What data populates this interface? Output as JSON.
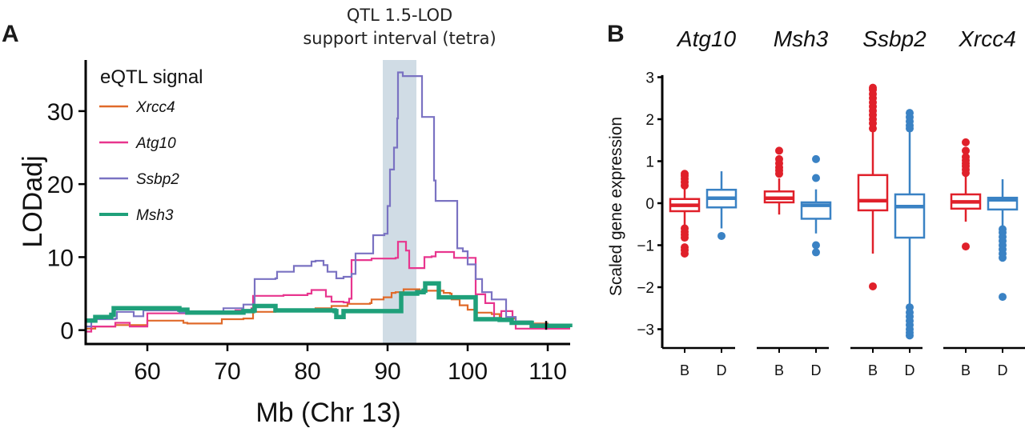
{
  "chart_data": [
    {
      "panel": "A",
      "type": "line",
      "step": true,
      "xlabel": "Mb (Chr 13)",
      "ylabel": "LODadj",
      "xlim": [
        52.3,
        112.8
      ],
      "ylim": [
        -1.9,
        37
      ],
      "xticks": [
        60,
        70,
        80,
        90,
        100,
        110
      ],
      "yticks": [
        0,
        10,
        20,
        30
      ],
      "grid": false,
      "shaded_region": {
        "label_line1": "QTL 1.5-LOD",
        "label_line2": "support interval (tetra)",
        "x_start": 89.4,
        "x_end": 93.6,
        "color": "#d0dce5"
      },
      "legend": {
        "title": "eQTL signal",
        "placement": "top-left"
      },
      "marker": {
        "x": 109.8,
        "y": 0.6
      },
      "series": [
        {
          "name": "Xrcc4",
          "color": "#e06a2a",
          "width": "thin",
          "points": [
            [
              52.3,
              0.2
            ],
            [
              53.5,
              0.5
            ],
            [
              56,
              0.7
            ],
            [
              59.8,
              0.7
            ],
            [
              60,
              1.3
            ],
            [
              64,
              1.3
            ],
            [
              64.5,
              1.0
            ],
            [
              65,
              0.9
            ],
            [
              69,
              0.9
            ],
            [
              69.3,
              1.5
            ],
            [
              72,
              1.6
            ],
            [
              73,
              1.6
            ],
            [
              73.2,
              2.5
            ],
            [
              76,
              2.6
            ],
            [
              78,
              2.8
            ],
            [
              81,
              3.0
            ],
            [
              83,
              3.3
            ],
            [
              85,
              3.6
            ],
            [
              87.8,
              3.7
            ],
            [
              88,
              4.2
            ],
            [
              89.5,
              4.5
            ],
            [
              90.5,
              5.1
            ],
            [
              91,
              5.2
            ],
            [
              92,
              5.6
            ],
            [
              93.8,
              5.6
            ],
            [
              94,
              5.4
            ],
            [
              97,
              5.1
            ],
            [
              97.8,
              5.0
            ],
            [
              98,
              4.2
            ],
            [
              99,
              3.4
            ],
            [
              100,
              2.8
            ],
            [
              101,
              2.4
            ],
            [
              103,
              2.2
            ],
            [
              104,
              1.6
            ],
            [
              106,
              1.2
            ],
            [
              108,
              0.9
            ],
            [
              110,
              0.6
            ],
            [
              112.8,
              0.5
            ]
          ]
        },
        {
          "name": "Atg10",
          "color": "#e8358e",
          "width": "thin",
          "points": [
            [
              52.3,
              -0.2
            ],
            [
              53,
              0.5
            ],
            [
              55.5,
              0.5
            ],
            [
              56,
              1.0
            ],
            [
              57.5,
              1.0
            ],
            [
              57.8,
              0.5
            ],
            [
              59.8,
              0.5
            ],
            [
              60,
              2.3
            ],
            [
              65,
              2.4
            ],
            [
              69,
              2.5
            ],
            [
              71,
              2.7
            ],
            [
              73,
              3.0
            ],
            [
              73.2,
              4.7
            ],
            [
              77,
              4.8
            ],
            [
              80,
              5.0
            ],
            [
              80.5,
              5.5
            ],
            [
              82,
              5.5
            ],
            [
              82.3,
              4.6
            ],
            [
              83,
              3.9
            ],
            [
              84.5,
              3.8
            ],
            [
              85.2,
              4.3
            ],
            [
              85.5,
              9.6
            ],
            [
              88,
              9.8
            ],
            [
              91,
              9.9
            ],
            [
              91.3,
              12.1
            ],
            [
              92,
              12.1
            ],
            [
              92.3,
              10.9
            ],
            [
              92.7,
              8.5
            ],
            [
              94.4,
              8.5
            ],
            [
              94.6,
              10.0
            ],
            [
              95.5,
              10.1
            ],
            [
              96,
              10.7
            ],
            [
              98,
              10.7
            ],
            [
              98.3,
              9.9
            ],
            [
              100.7,
              9.9
            ],
            [
              101,
              4.9
            ],
            [
              102,
              4.9
            ],
            [
              102.2,
              3.7
            ],
            [
              103,
              3.7
            ],
            [
              103.3,
              1.6
            ],
            [
              104,
              1.6
            ],
            [
              104.2,
              2.6
            ],
            [
              105.4,
              2.6
            ],
            [
              105.6,
              1.1
            ],
            [
              106,
              0.2
            ],
            [
              110,
              0.2
            ],
            [
              112.8,
              0.2
            ]
          ]
        },
        {
          "name": "Ssbp2",
          "color": "#7a72c2",
          "width": "thin",
          "points": [
            [
              52.3,
              0.5
            ],
            [
              53,
              1.5
            ],
            [
              56,
              1.6
            ],
            [
              56.2,
              2.5
            ],
            [
              58,
              2.5
            ],
            [
              58.3,
              1.9
            ],
            [
              59.3,
              1.9
            ],
            [
              59.5,
              2.7
            ],
            [
              63,
              2.7
            ],
            [
              64,
              2.4
            ],
            [
              68,
              2.3
            ],
            [
              69.5,
              3.0
            ],
            [
              72,
              3.5
            ],
            [
              73.2,
              3.6
            ],
            [
              73.4,
              7.0
            ],
            [
              76,
              7.1
            ],
            [
              76.2,
              8.0
            ],
            [
              78,
              8.0
            ],
            [
              78.3,
              8.8
            ],
            [
              80.5,
              9.4
            ],
            [
              81,
              9.5
            ],
            [
              82,
              8.9
            ],
            [
              82.5,
              8.0
            ],
            [
              83.4,
              8.0
            ],
            [
              83.6,
              7.1
            ],
            [
              84.5,
              7.3
            ],
            [
              85.5,
              7.7
            ],
            [
              86,
              10.5
            ],
            [
              88,
              10.5
            ],
            [
              88.2,
              13.0
            ],
            [
              89.6,
              13.2
            ],
            [
              90,
              17.0
            ],
            [
              90.3,
              22.0
            ],
            [
              90.8,
              25.0
            ],
            [
              91.2,
              29.0
            ],
            [
              91.3,
              35.3
            ],
            [
              91.8,
              35.3
            ],
            [
              91.9,
              34.8
            ],
            [
              94.1,
              34.8
            ],
            [
              94.3,
              29.2
            ],
            [
              95.7,
              29.2
            ],
            [
              95.8,
              20.5
            ],
            [
              96,
              17.7
            ],
            [
              98.5,
              17.7
            ],
            [
              98.7,
              11.2
            ],
            [
              99.4,
              10.8
            ],
            [
              100,
              9.0
            ],
            [
              101,
              7.0
            ],
            [
              101.8,
              5.2
            ],
            [
              102.7,
              5.2
            ],
            [
              103,
              4.2
            ],
            [
              104.6,
              4.2
            ],
            [
              104.8,
              1.8
            ],
            [
              106,
              1.2
            ],
            [
              108,
              0.8
            ],
            [
              110,
              0.5
            ],
            [
              112.8,
              0.4
            ]
          ]
        },
        {
          "name": "Msh3",
          "color": "#1fa07a",
          "width": "thick",
          "points": [
            [
              52.3,
              1.3
            ],
            [
              53.5,
              1.8
            ],
            [
              55.5,
              2.1
            ],
            [
              55.8,
              3.0
            ],
            [
              63,
              3.0
            ],
            [
              64,
              2.8
            ],
            [
              65,
              2.4
            ],
            [
              72,
              2.6
            ],
            [
              73.2,
              2.7
            ],
            [
              73.4,
              3.3
            ],
            [
              75.8,
              3.3
            ],
            [
              76,
              2.7
            ],
            [
              83,
              2.7
            ],
            [
              83.4,
              2.6
            ],
            [
              83.6,
              1.8
            ],
            [
              84.3,
              1.8
            ],
            [
              84.5,
              2.6
            ],
            [
              91.5,
              2.6
            ],
            [
              91.7,
              5.0
            ],
            [
              93.7,
              5.2
            ],
            [
              94.5,
              5.4
            ],
            [
              94.7,
              6.4
            ],
            [
              96.2,
              6.4
            ],
            [
              96.4,
              4.5
            ],
            [
              100.8,
              4.5
            ],
            [
              101,
              1.5
            ],
            [
              104,
              1.4
            ],
            [
              105.5,
              1.0
            ],
            [
              108,
              0.6
            ],
            [
              110,
              0.6
            ],
            [
              112.8,
              0.4
            ]
          ]
        }
      ]
    },
    {
      "panel": "B",
      "type": "box",
      "ylabel": "Scaled gene expression",
      "ylim": [
        -3.45,
        3.05
      ],
      "yticks": [
        3,
        2,
        1,
        0,
        -1,
        -2,
        -3
      ],
      "categories": [
        "B",
        "D"
      ],
      "group_colors": {
        "B": "#e0202a",
        "D": "#3a82c4"
      },
      "facets": [
        {
          "gene": "Atg10",
          "boxes": [
            {
              "group": "B",
              "q1": -0.19,
              "median": -0.05,
              "q3": 0.1,
              "whisker_low": -0.55,
              "whisker_high": 0.38,
              "outliers": [
                0.42,
                0.5,
                0.58,
                0.65,
                0.7,
                -0.6,
                -0.68,
                -0.75,
                -0.82,
                -1.05,
                -1.12,
                -1.2
              ]
            },
            {
              "group": "D",
              "q1": -0.1,
              "median": 0.12,
              "q3": 0.32,
              "whisker_low": -0.6,
              "whisker_high": 0.76,
              "outliers": [
                -0.78
              ]
            }
          ]
        },
        {
          "gene": "Msh3",
          "boxes": [
            {
              "group": "B",
              "q1": 0.02,
              "median": 0.12,
              "q3": 0.28,
              "whisker_low": -0.27,
              "whisker_high": 0.59,
              "outliers": [
                0.7,
                0.78,
                0.85,
                0.95,
                1.05,
                1.25
              ]
            },
            {
              "group": "D",
              "q1": -0.37,
              "median": -0.05,
              "q3": 0.02,
              "whisker_low": -0.72,
              "whisker_high": 0.33,
              "outliers": [
                0.6,
                1.05,
                -1.0,
                -1.17
              ]
            }
          ]
        },
        {
          "gene": "Ssbp2",
          "boxes": [
            {
              "group": "B",
              "q1": -0.17,
              "median": 0.06,
              "q3": 0.67,
              "whisker_low": -1.2,
              "whisker_high": 1.72,
              "outliers": [
                1.78,
                1.9,
                2.0,
                2.1,
                2.2,
                2.3,
                2.4,
                2.5,
                2.6,
                2.7,
                2.75,
                -1.98
              ]
            },
            {
              "group": "D",
              "q1": -0.82,
              "median": -0.08,
              "q3": 0.21,
              "whisker_low": -2.43,
              "whisker_high": 1.7,
              "outliers": [
                1.78,
                1.85,
                1.95,
                2.05,
                2.15,
                -2.48,
                -2.6,
                -2.7,
                -2.8,
                -2.9,
                -3.0,
                -3.08,
                -3.15
              ]
            }
          ]
        },
        {
          "gene": "Xrcc4",
          "boxes": [
            {
              "group": "B",
              "q1": -0.13,
              "median": 0.03,
              "q3": 0.21,
              "whisker_low": -0.44,
              "whisker_high": 0.66,
              "outliers": [
                0.72,
                0.8,
                0.88,
                0.95,
                1.02,
                1.1,
                1.25,
                1.45,
                -1.03
              ]
            },
            {
              "group": "D",
              "q1": -0.15,
              "median": 0.08,
              "q3": 0.13,
              "whisker_low": -0.55,
              "whisker_high": 0.57,
              "outliers": [
                -0.62,
                -0.7,
                -0.8,
                -0.9,
                -1.0,
                -1.1,
                -1.2,
                -1.3,
                -2.23
              ]
            }
          ]
        }
      ]
    }
  ],
  "labels": {
    "panel_a": "A",
    "panel_b": "B"
  }
}
